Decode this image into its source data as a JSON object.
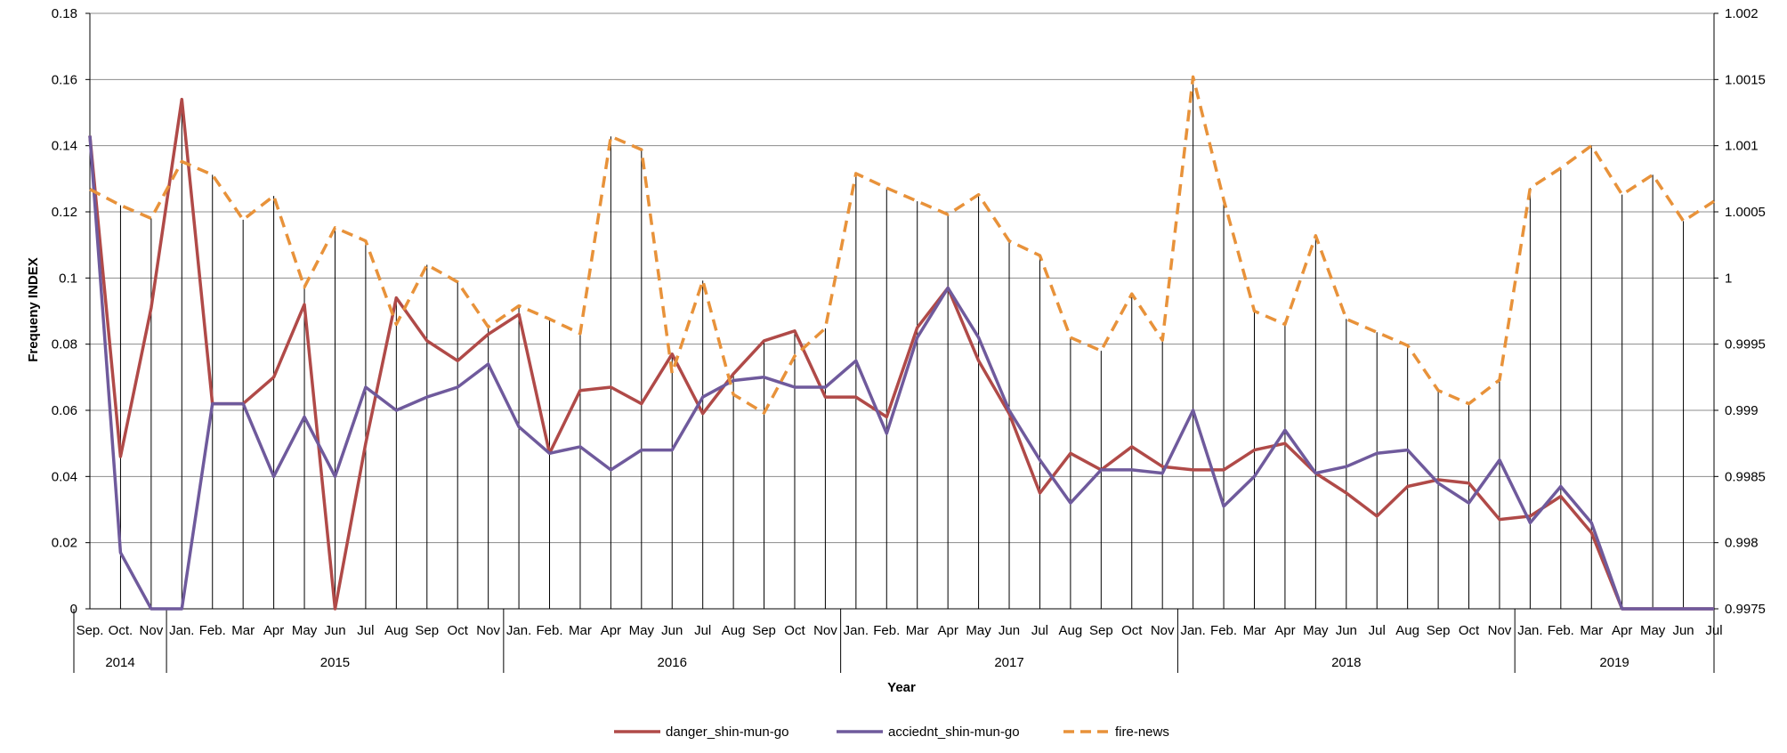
{
  "chart_data": {
    "type": "line",
    "title": "",
    "xlabel": "Year",
    "ylabel": "Frequeny INDEX",
    "ylim": [
      0,
      0.18
    ],
    "yticks": [
      "0",
      "0.02",
      "0.04",
      "0.06",
      "0.08",
      "0.1",
      "0.12",
      "0.14",
      "0.16",
      "0.18"
    ],
    "y2lim": [
      0.9975,
      1.002
    ],
    "y2ticks": [
      "0.9975",
      "0.998",
      "0.9985",
      "0.999",
      "0.9995",
      "1",
      "1.0005",
      "1.001",
      "1.0015",
      "1.002"
    ],
    "grid": true,
    "legend_position": "bottom",
    "categories": [
      "Sep.",
      "Oct.",
      "Nov",
      "Jan.",
      "Feb.",
      "Mar",
      "Apr",
      "May",
      "Jun",
      "Jul",
      "Aug",
      "Sep",
      "Oct",
      "Nov",
      "Jan.",
      "Feb.",
      "Mar",
      "Apr",
      "May",
      "Jun",
      "Jul",
      "Aug",
      "Sep",
      "Oct",
      "Nov",
      "Jan.",
      "Feb.",
      "Mar",
      "Apr",
      "May",
      "Jun",
      "Jul",
      "Aug",
      "Sep",
      "Oct",
      "Nov",
      "Jan.",
      "Feb.",
      "Mar",
      "Apr",
      "May",
      "Jun",
      "Jul",
      "Aug",
      "Sep",
      "Oct",
      "Nov",
      "Jan.",
      "Feb.",
      "Mar",
      "Apr",
      "May",
      "Jun",
      "Jul"
    ],
    "year_groups": [
      {
        "label": "2014",
        "count": 3
      },
      {
        "label": "2015",
        "count": 11
      },
      {
        "label": "2016",
        "count": 11
      },
      {
        "label": "2017",
        "count": 11
      },
      {
        "label": "2018",
        "count": 11
      },
      {
        "label": "2019",
        "count": 7
      }
    ],
    "series": [
      {
        "name": "danger_shin-mun-go",
        "axis": "left",
        "color": "#b04a48",
        "style": "solid",
        "values": [
          0.143,
          0.046,
          0.091,
          0.154,
          0.062,
          0.062,
          0.07,
          0.092,
          0.0,
          0.05,
          0.094,
          0.081,
          0.075,
          0.083,
          0.089,
          0.047,
          0.066,
          0.067,
          0.062,
          0.077,
          0.059,
          0.071,
          0.081,
          0.084,
          0.064,
          0.064,
          0.058,
          0.085,
          0.097,
          0.075,
          0.059,
          0.035,
          0.047,
          0.042,
          0.049,
          0.043,
          0.042,
          0.042,
          0.048,
          0.05,
          0.041,
          0.035,
          0.028,
          0.037,
          0.039,
          0.038,
          0.027,
          0.028,
          0.034,
          0.023,
          0.0,
          0.0,
          0.0,
          0.0
        ]
      },
      {
        "name": "acciednt_shin-mun-go",
        "axis": "left",
        "color": "#6f5a9c",
        "style": "solid",
        "values": [
          0.143,
          0.017,
          0.0,
          0.0,
          0.062,
          0.062,
          0.04,
          0.058,
          0.04,
          0.067,
          0.06,
          0.064,
          0.067,
          0.074,
          0.055,
          0.047,
          0.049,
          0.042,
          0.048,
          0.048,
          0.064,
          0.069,
          0.07,
          0.067,
          0.067,
          0.075,
          0.053,
          0.082,
          0.097,
          0.082,
          0.06,
          0.045,
          0.032,
          0.042,
          0.042,
          0.041,
          0.06,
          0.031,
          0.04,
          0.054,
          0.041,
          0.043,
          0.047,
          0.048,
          0.038,
          0.032,
          0.045,
          0.026,
          0.037,
          0.026,
          0.0,
          0.0,
          0.0,
          0.0
        ]
      },
      {
        "name": "fire-news",
        "axis": "right",
        "color": "#e8923a",
        "style": "dashed",
        "values": [
          1.00067,
          1.00055,
          1.00045,
          1.00088,
          1.00078,
          1.00044,
          1.00062,
          0.99993,
          1.00038,
          1.00028,
          0.99965,
          1.0001,
          0.99997,
          0.99963,
          0.99979,
          0.99969,
          0.99958,
          1.00107,
          1.00097,
          0.99928,
          0.99998,
          0.99912,
          0.99898,
          0.99941,
          0.99962,
          1.00079,
          1.00068,
          1.00058,
          1.00048,
          1.00063,
          1.00028,
          1.00017,
          0.99955,
          0.99945,
          0.99988,
          0.99953,
          1.00152,
          1.00059,
          0.99975,
          0.99965,
          1.00032,
          0.99969,
          0.99959,
          0.99949,
          0.99915,
          0.99905,
          0.99923,
          1.00068,
          1.00083,
          1.001,
          1.00063,
          1.00078,
          1.00043,
          1.00058
        ]
      }
    ]
  }
}
